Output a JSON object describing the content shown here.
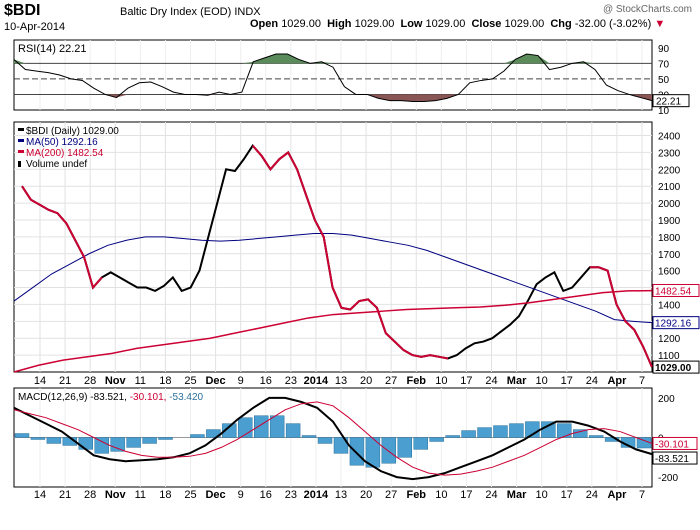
{
  "header": {
    "symbol": "$BDI",
    "name": "Baltic Dry Index (EOD)",
    "exchange": "INDX",
    "date": "10-Apr-2014",
    "open_label": "Open",
    "open": "1029.00",
    "high_label": "High",
    "high": "1029.00",
    "low_label": "Low",
    "low": "1029.00",
    "close_label": "Close",
    "close": "1029.00",
    "chg_label": "Chg",
    "chg": "-32.00 (-3.02%)",
    "watermark": "@ StockCharts.com"
  },
  "chart_data": [
    {
      "type": "line",
      "panel": "rsi",
      "legend": "RSI(14) 22.21",
      "y_ticks": [
        10,
        30,
        50,
        70,
        90
      ],
      "ylim": [
        10,
        100
      ],
      "reference_lines": [
        30,
        50,
        70
      ],
      "last_label": "22.21",
      "values": [
        75,
        62,
        60,
        58,
        55,
        50,
        48,
        38,
        30,
        26,
        38,
        45,
        46,
        40,
        33,
        30,
        30,
        29,
        33,
        30,
        33,
        72,
        77,
        82,
        82,
        75,
        70,
        72,
        65,
        40,
        30,
        30,
        25,
        22,
        22,
        21,
        21,
        22,
        25,
        30,
        45,
        48,
        50,
        60,
        75,
        82,
        80,
        62,
        65,
        70,
        72,
        62,
        42,
        35,
        30,
        26,
        22
      ]
    },
    {
      "type": "line",
      "panel": "price",
      "x_ticks": [
        "14",
        "21",
        "28",
        "Nov",
        "11",
        "18",
        "25",
        "Dec",
        "9",
        "16",
        "23",
        "2014",
        "13",
        "20",
        "27",
        "Feb",
        "10",
        "17",
        "24",
        "Mar",
        "10",
        "17",
        "24",
        "Apr",
        "7"
      ],
      "y_ticks": [
        1100,
        1200,
        1300,
        1400,
        1500,
        1600,
        1700,
        1800,
        1900,
        2000,
        2100,
        2200,
        2300,
        2400
      ],
      "ylim": [
        1000,
        2480
      ],
      "grid": true,
      "legend_position": "top-left",
      "last_labels": {
        "price": "1029.00",
        "ma50": "1292.16",
        "ma200": "1482.54"
      },
      "series": [
        {
          "name": "$BDI (Daily) 1029.00",
          "color": "#000000",
          "values": [
            2100,
            2020,
            1990,
            1960,
            1940,
            1880,
            1780,
            1680,
            1500,
            1560,
            1590,
            1560,
            1530,
            1500,
            1500,
            1480,
            1510,
            1560,
            1480,
            1500,
            1600,
            1800,
            2000,
            2200,
            2190,
            2260,
            2340,
            2280,
            2200,
            2260,
            2300,
            2200,
            2050,
            1900,
            1800,
            1500,
            1380,
            1370,
            1420,
            1430,
            1380,
            1230,
            1180,
            1130,
            1100,
            1090,
            1100,
            1090,
            1080,
            1100,
            1140,
            1170,
            1180,
            1200,
            1240,
            1280,
            1330,
            1420,
            1520,
            1560,
            1590,
            1480,
            1500,
            1560,
            1620,
            1620,
            1600,
            1400,
            1300,
            1250,
            1150,
            1029
          ]
        },
        {
          "name": "MA(50) 1292.16",
          "color": "#000080",
          "values": [
            1420,
            1500,
            1580,
            1640,
            1700,
            1750,
            1780,
            1800,
            1800,
            1790,
            1780,
            1775,
            1780,
            1790,
            1800,
            1810,
            1820,
            1820,
            1810,
            1790,
            1770,
            1750,
            1720,
            1680,
            1640,
            1600,
            1560,
            1520,
            1480,
            1440,
            1400,
            1360,
            1310,
            1300,
            1292
          ]
        },
        {
          "name": "MA(200) 1482.54",
          "color": "#cc0033",
          "values": [
            1000,
            1040,
            1070,
            1090,
            1110,
            1140,
            1160,
            1180,
            1200,
            1230,
            1260,
            1290,
            1320,
            1340,
            1350,
            1360,
            1370,
            1375,
            1380,
            1385,
            1395,
            1410,
            1430,
            1450,
            1470,
            1480,
            1482
          ]
        }
      ],
      "volume_label": "Volume undef"
    },
    {
      "type": "line",
      "panel": "macd",
      "legend": {
        "title": "MACD(12,26,9)",
        "macd": "-83.521",
        "signal": "-30.101",
        "hist": "-53.420"
      },
      "y_ticks": [
        -200,
        0,
        200
      ],
      "ylim": [
        -250,
        250
      ],
      "last_labels": {
        "signal": "-30.101",
        "macd": "-83.521"
      },
      "macd": [
        150,
        110,
        70,
        30,
        -30,
        -90,
        -110,
        -120,
        -115,
        -110,
        -100,
        -80,
        -40,
        20,
        90,
        150,
        200,
        200,
        180,
        150,
        80,
        -40,
        -120,
        -170,
        -200,
        -210,
        -200,
        -180,
        -150,
        -120,
        -90,
        -50,
        -10,
        40,
        80,
        80,
        60,
        30,
        -20,
        -60,
        -84
      ],
      "signal": [
        140,
        120,
        100,
        70,
        40,
        0,
        -40,
        -70,
        -90,
        -100,
        -100,
        -95,
        -80,
        -50,
        -10,
        40,
        90,
        140,
        170,
        180,
        160,
        100,
        30,
        -40,
        -100,
        -150,
        -180,
        -190,
        -185,
        -170,
        -150,
        -120,
        -90,
        -50,
        -10,
        20,
        40,
        45,
        30,
        0,
        -30
      ],
      "histogram": [
        20,
        -10,
        -30,
        -40,
        -60,
        -80,
        -70,
        -50,
        -30,
        -10,
        0,
        15,
        40,
        70,
        100,
        110,
        110,
        70,
        10,
        -30,
        -80,
        -140,
        -150,
        -130,
        -100,
        -60,
        -20,
        10,
        35,
        50,
        60,
        70,
        80,
        80,
        70,
        40,
        10,
        -20,
        -50,
        -53
      ]
    }
  ]
}
